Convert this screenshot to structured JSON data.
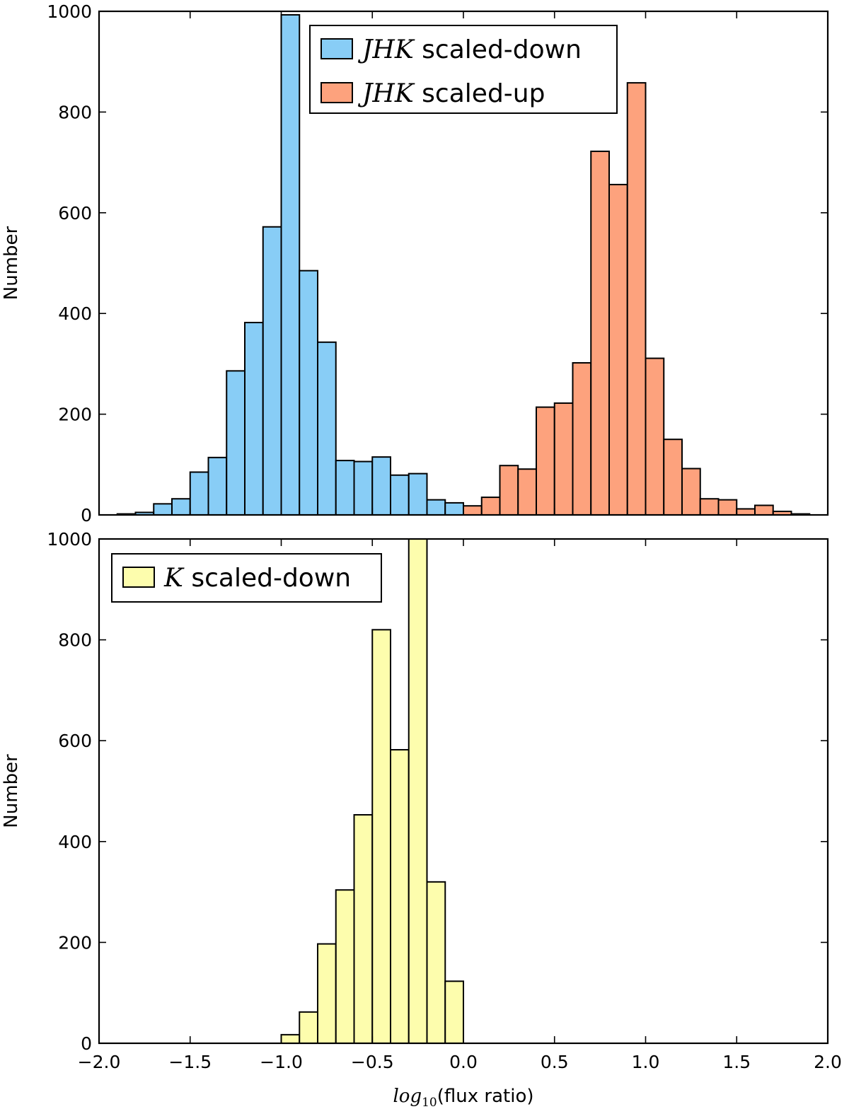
{
  "chart_data": [
    {
      "type": "bar",
      "ylabel": "Number",
      "xlim": [
        -2.0,
        2.0
      ],
      "ylim": [
        0,
        1000
      ],
      "bin_width": 0.1,
      "xticks": [
        "−2.0",
        "−1.5",
        "−1.0",
        "−0.5",
        "0.0",
        "0.5",
        "1.0",
        "1.5",
        "2.0"
      ],
      "yticks": [
        "0",
        "200",
        "400",
        "600",
        "800",
        "1000"
      ],
      "legend": {
        "placement": "top-center"
      },
      "series": [
        {
          "name_math": "JHK",
          "name_text": " scaled-down",
          "color": "#88cdf6",
          "bin_starts": [
            -1.9,
            -1.8,
            -1.7,
            -1.6,
            -1.5,
            -1.4,
            -1.3,
            -1.2,
            -1.1,
            -1.0,
            -0.9,
            -0.8,
            -0.7,
            -0.6,
            -0.5,
            -0.4,
            -0.3,
            -0.2,
            -0.1
          ],
          "values": [
            2,
            5,
            22,
            32,
            85,
            114,
            286,
            382,
            572,
            993,
            485,
            343,
            108,
            106,
            115,
            79,
            82,
            30,
            24
          ]
        },
        {
          "name_math": "JHK",
          "name_text": " scaled-up",
          "color": "#fda27d",
          "bin_starts": [
            0.0,
            0.1,
            0.2,
            0.3,
            0.4,
            0.5,
            0.6,
            0.7,
            0.8,
            0.9,
            1.0,
            1.1,
            1.2,
            1.3,
            1.4,
            1.5,
            1.6,
            1.7,
            1.8
          ],
          "values": [
            18,
            35,
            98,
            91,
            214,
            222,
            302,
            722,
            656,
            858,
            311,
            150,
            92,
            32,
            30,
            12,
            19,
            7,
            2
          ]
        }
      ]
    },
    {
      "type": "bar",
      "ylabel": "Number",
      "xlabel_math": "log",
      "xlabel_sub": "10",
      "xlabel_text": "(flux ratio)",
      "xlim": [
        -2.0,
        2.0
      ],
      "ylim": [
        0,
        1000
      ],
      "bin_width": 0.1,
      "xticks": [
        "−2.0",
        "−1.5",
        "−1.0",
        "−0.5",
        "0.0",
        "0.5",
        "1.0",
        "1.5",
        "2.0"
      ],
      "yticks": [
        "0",
        "200",
        "400",
        "600",
        "800",
        "1000"
      ],
      "legend": {
        "placement": "top-left"
      },
      "series": [
        {
          "name_math": "K",
          "name_text": " scaled-down",
          "color": "#fdfdad",
          "bin_starts": [
            -1.0,
            -0.9,
            -0.8,
            -0.7,
            -0.6,
            -0.5,
            -0.4,
            -0.3,
            -0.2,
            -0.1
          ],
          "values": [
            17,
            62,
            197,
            304,
            453,
            820,
            582,
            1000,
            320,
            123
          ]
        }
      ]
    }
  ]
}
